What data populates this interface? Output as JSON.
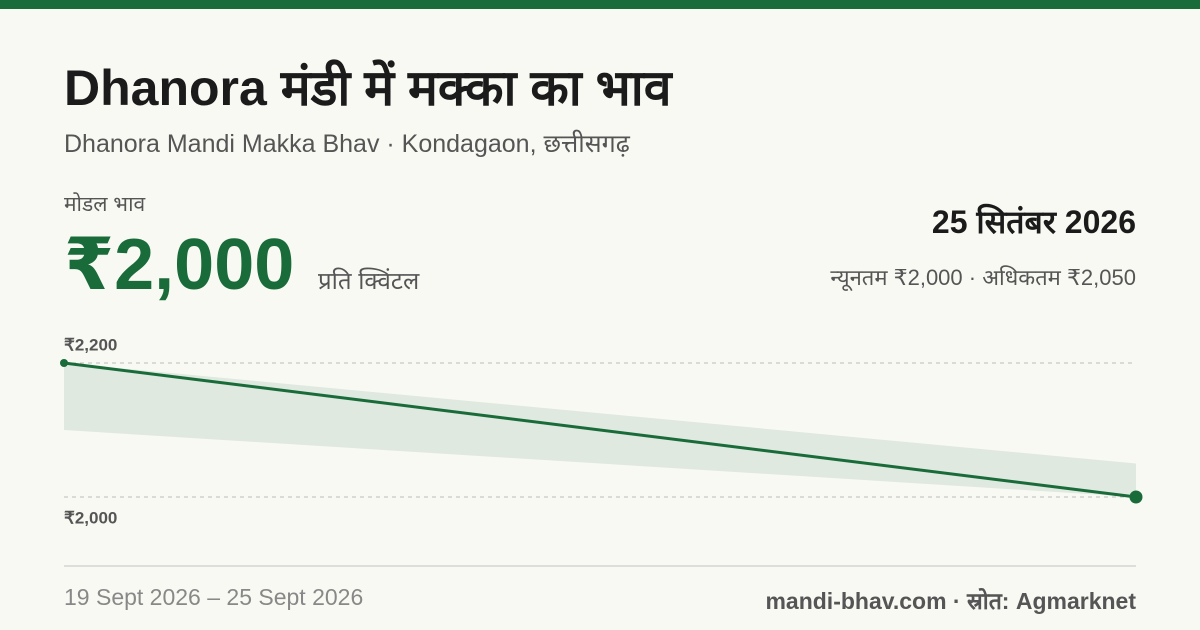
{
  "header": {
    "title": "Dhanora मंडी में मक्का का भाव",
    "subtitle": "Dhanora Mandi Makka Bhav · Kondagaon, छत्तीसगढ़"
  },
  "price": {
    "label": "मोडल भाव",
    "value": "₹2,000",
    "unit": "प्रति क्विंटल",
    "date": "25 सितंबर 2026",
    "range": "न्यूनतम ₹2,000 · अधिकतम ₹2,050"
  },
  "chart_data": {
    "type": "line",
    "categories": [
      null,
      null
    ],
    "series": [
      {
        "color": "#1a6b3a",
        "values": [
          2200,
          2000
        ]
      },
      {
        "color": "#dfe9e0",
        "values": [
          2200,
          2050
        ]
      },
      {
        "color": "#dfe9e0",
        "values": [
          2100,
          2000
        ]
      }
    ],
    "ylim": [
      2000,
      2200
    ],
    "yticks": [
      {
        "value": 2000,
        "label": "₹2,000"
      },
      {
        "value": 2200,
        "label": "₹2,200"
      }
    ],
    "grid": true
  },
  "footer": {
    "dates": "19 Sept 2026 – 25 Sept 2026",
    "source": "mandi-bhav.com · स्रोत: Agmarknet"
  }
}
